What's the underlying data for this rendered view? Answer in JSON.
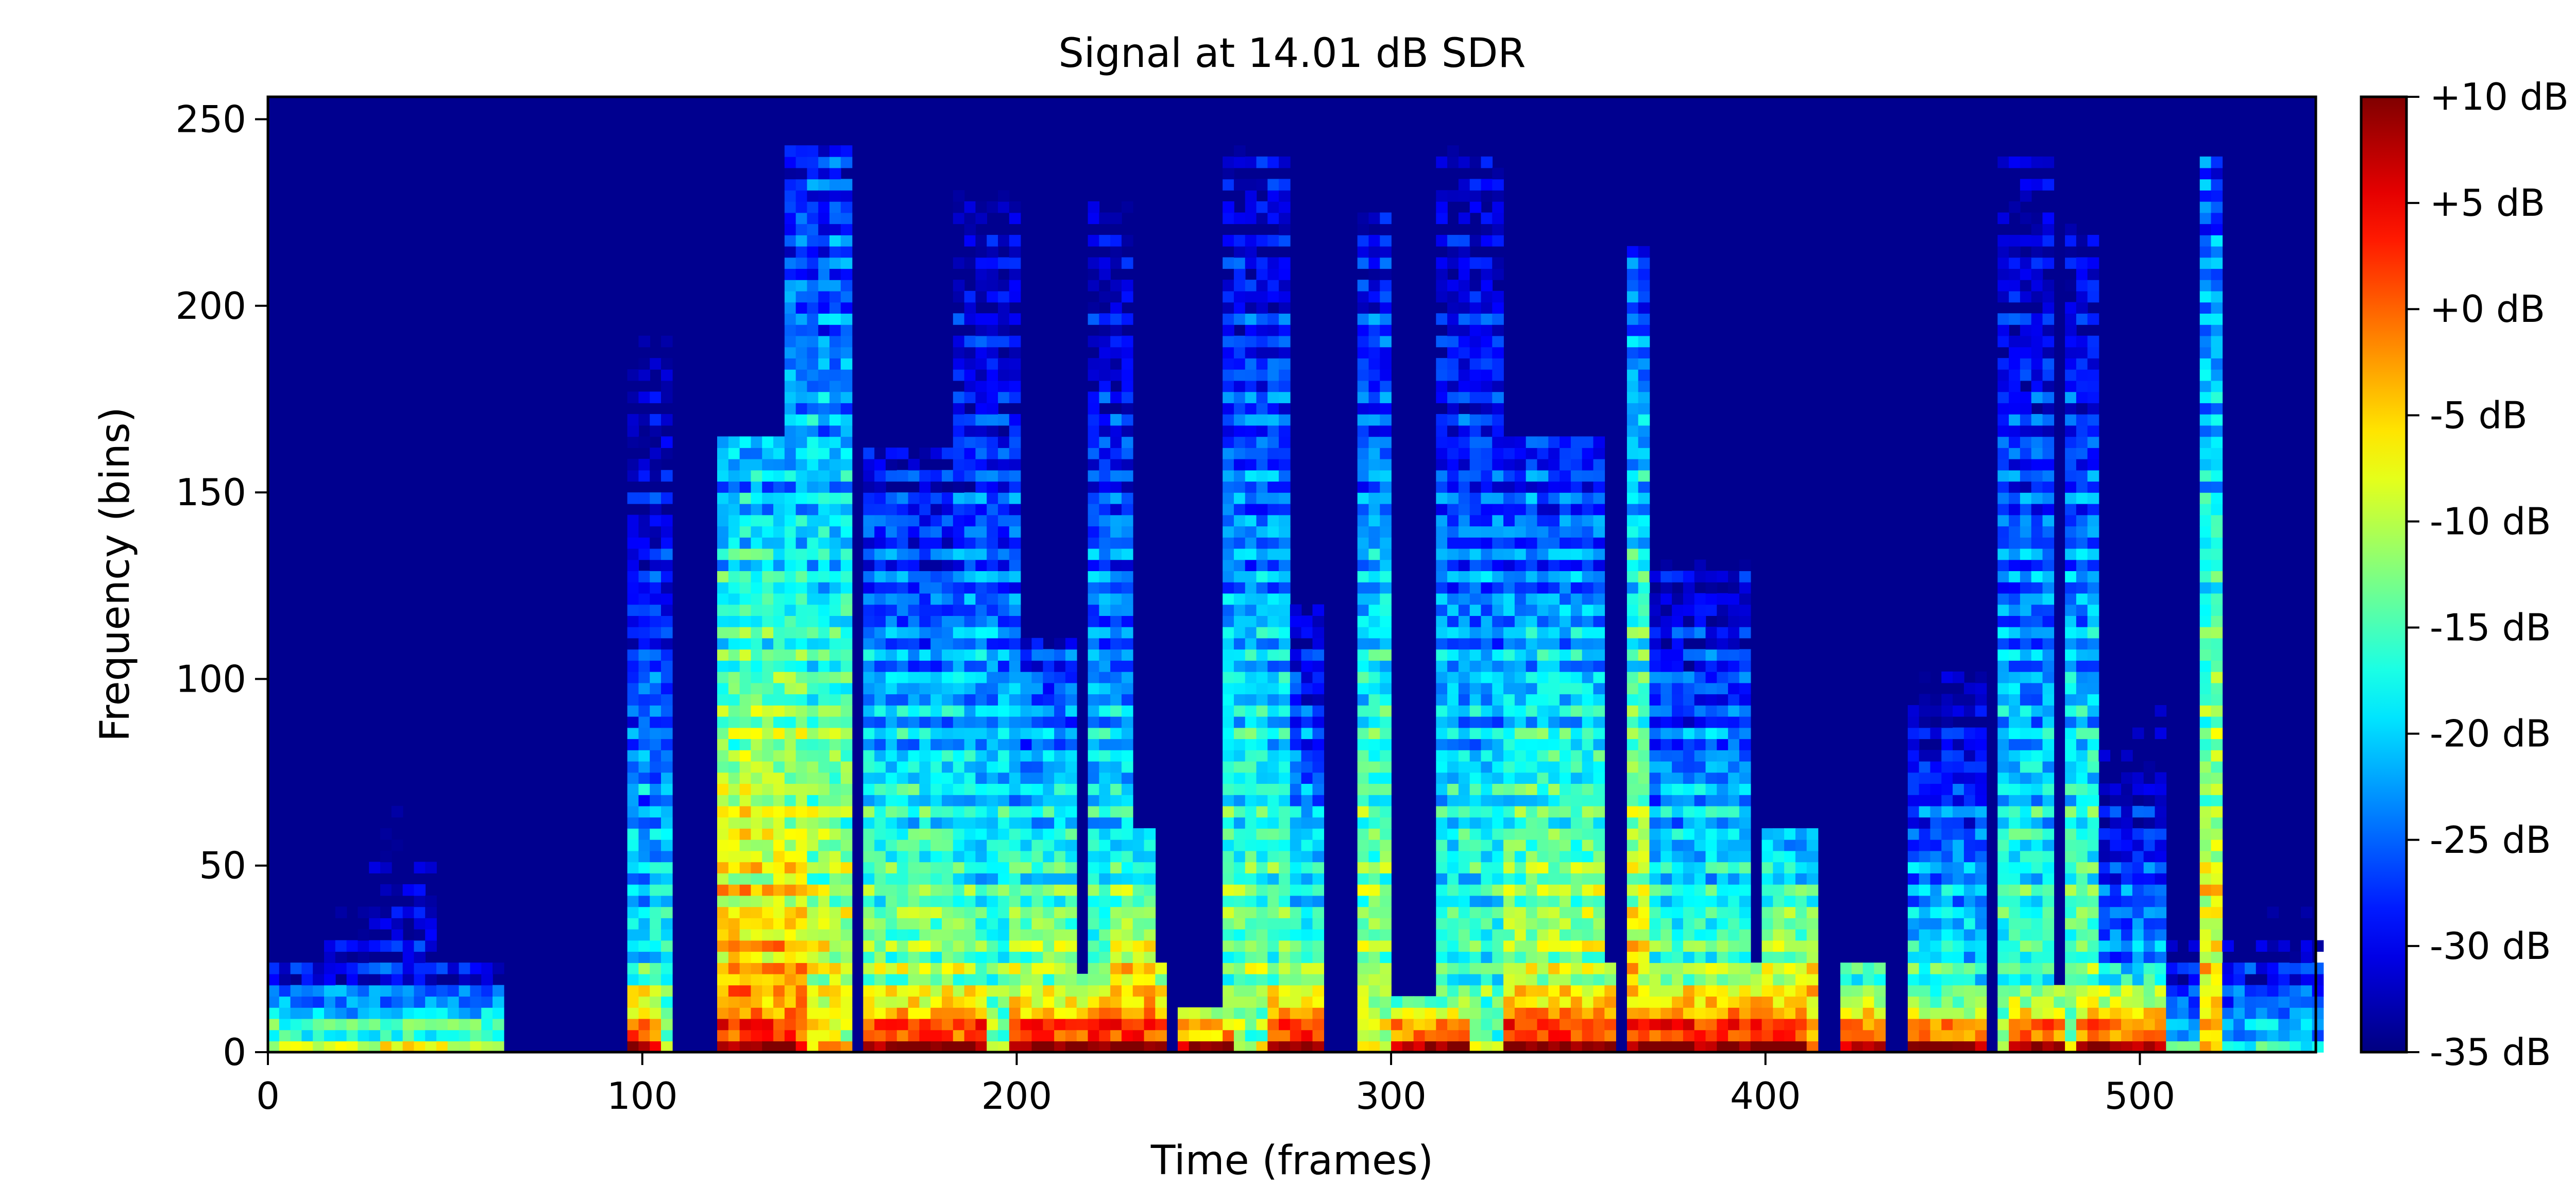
{
  "chart_data": {
    "type": "heatmap",
    "title": "Signal at 14.01 dB SDR",
    "xlabel": "Time (frames)",
    "ylabel": "Frequency (bins)",
    "xlim": [
      0,
      547
    ],
    "ylim": [
      0,
      256
    ],
    "x_ticks": [
      0,
      100,
      200,
      300,
      400,
      500
    ],
    "y_ticks": [
      0,
      50,
      100,
      150,
      200,
      250
    ],
    "colormap": "jet",
    "colorbar": {
      "range": [
        -35,
        10
      ],
      "ticks": [
        10,
        5,
        0,
        -5,
        -10,
        -15,
        -20,
        -25,
        -30,
        -35
      ],
      "tick_labels": [
        "+10 dB",
        "+5 dB",
        "+0 dB",
        "-5 dB",
        "-10 dB",
        "-15 dB",
        "-20 dB",
        "-25 dB",
        "-30 dB",
        "-35 dB"
      ]
    },
    "background_level_db": -35,
    "events": [
      {
        "t0": 0,
        "t1": 62,
        "fmax": 22,
        "peak_db": -8
      },
      {
        "t0": 15,
        "t1": 28,
        "fmax": 48,
        "peak_db": -18
      },
      {
        "t0": 28,
        "t1": 45,
        "fmax": 97,
        "peak_db": -22
      },
      {
        "t0": 96,
        "t1": 106,
        "fmax": 195,
        "peak_db": -12
      },
      {
        "t0": 96,
        "t1": 104,
        "fmax": 22,
        "peak_db": 8
      },
      {
        "t0": 120,
        "t1": 142,
        "fmax": 165,
        "peak_db": 2
      },
      {
        "t0": 122,
        "t1": 140,
        "fmax": 25,
        "peak_db": 10
      },
      {
        "t0": 140,
        "t1": 155,
        "fmax": 243,
        "peak_db": -4
      },
      {
        "t0": 160,
        "t1": 188,
        "fmax": 160,
        "peak_db": -6
      },
      {
        "t0": 160,
        "t1": 190,
        "fmax": 20,
        "peak_db": 10
      },
      {
        "t0": 185,
        "t1": 200,
        "fmax": 230,
        "peak_db": -10
      },
      {
        "t0": 200,
        "t1": 215,
        "fmax": 110,
        "peak_db": -4
      },
      {
        "t0": 200,
        "t1": 225,
        "fmax": 20,
        "peak_db": 10
      },
      {
        "t0": 220,
        "t1": 230,
        "fmax": 230,
        "peak_db": -10
      },
      {
        "t0": 225,
        "t1": 237,
        "fmax": 60,
        "peak_db": 4
      },
      {
        "t0": 225,
        "t1": 238,
        "fmax": 22,
        "peak_db": 10
      },
      {
        "t0": 245,
        "t1": 258,
        "fmax": 12,
        "peak_db": 8
      },
      {
        "t0": 255,
        "t1": 272,
        "fmax": 243,
        "peak_db": -8
      },
      {
        "t0": 268,
        "t1": 282,
        "fmax": 120,
        "peak_db": -8
      },
      {
        "t0": 268,
        "t1": 282,
        "fmax": 20,
        "peak_db": 10
      },
      {
        "t0": 292,
        "t1": 298,
        "fmax": 225,
        "peak_db": -6
      },
      {
        "t0": 300,
        "t1": 320,
        "fmax": 15,
        "peak_db": 8
      },
      {
        "t0": 313,
        "t1": 330,
        "fmax": 243,
        "peak_db": -10
      },
      {
        "t0": 330,
        "t1": 357,
        "fmax": 165,
        "peak_db": -4
      },
      {
        "t0": 330,
        "t1": 358,
        "fmax": 22,
        "peak_db": 10
      },
      {
        "t0": 363,
        "t1": 369,
        "fmax": 215,
        "peak_db": -2
      },
      {
        "t0": 365,
        "t1": 410,
        "fmax": 22,
        "peak_db": 10
      },
      {
        "t0": 370,
        "t1": 395,
        "fmax": 130,
        "peak_db": -8
      },
      {
        "t0": 400,
        "t1": 412,
        "fmax": 60,
        "peak_db": 2
      },
      {
        "t0": 420,
        "t1": 430,
        "fmax": 22,
        "peak_db": 6
      },
      {
        "t0": 440,
        "t1": 458,
        "fmax": 100,
        "peak_db": -10
      },
      {
        "t0": 440,
        "t1": 458,
        "fmax": 15,
        "peak_db": 8
      },
      {
        "t0": 462,
        "t1": 475,
        "fmax": 240,
        "peak_db": -10
      },
      {
        "t0": 466,
        "t1": 478,
        "fmax": 18,
        "peak_db": 8
      },
      {
        "t0": 480,
        "t1": 487,
        "fmax": 220,
        "peak_db": -8
      },
      {
        "t0": 485,
        "t1": 505,
        "fmax": 20,
        "peak_db": 8
      },
      {
        "t0": 490,
        "t1": 505,
        "fmax": 95,
        "peak_db": -14
      },
      {
        "t0": 516,
        "t1": 522,
        "fmax": 240,
        "peak_db": -2
      },
      {
        "t0": 505,
        "t1": 547,
        "fmax": 40,
        "peak_db": -16
      }
    ]
  }
}
